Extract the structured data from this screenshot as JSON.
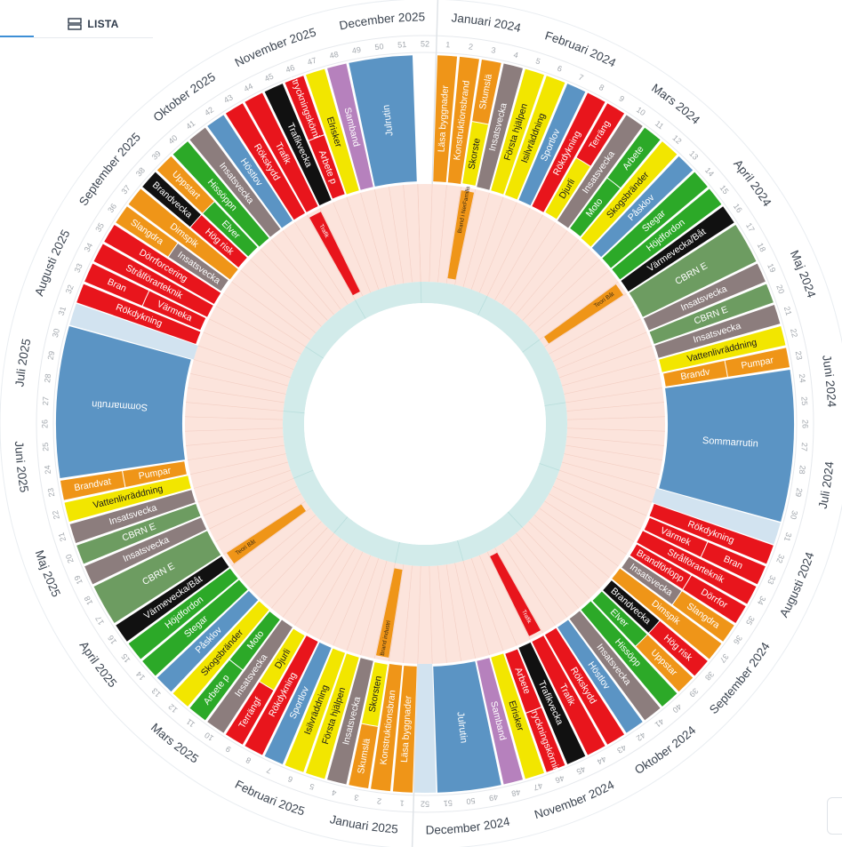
{
  "toolbar": {
    "view_label": "LISTA",
    "corner_glyph": "–"
  },
  "chart_data": {
    "type": "annual-wheel",
    "colors": {
      "blue": "#5b94c4",
      "orange": "#ef9518",
      "gray": "#8c7d7d",
      "yellow": "#f2e600",
      "red": "#e8151c",
      "green": "#2ca928",
      "black": "#111111",
      "darkgreen": "#6d9c61",
      "purple": "#b681bd",
      "lightblue": "#d2e3f0",
      "pinkbg": "#fce4dc",
      "teal": "#d2ebea"
    },
    "months": [
      {
        "label": "Januari 2024",
        "start": 0.5,
        "end": 4.5
      },
      {
        "label": "Februari 2024",
        "start": 4.5,
        "end": 8.5
      },
      {
        "label": "Mars 2024",
        "start": 8.5,
        "end": 13.5
      },
      {
        "label": "April 2024",
        "start": 13.5,
        "end": 17.5
      },
      {
        "label": "Maj 2024",
        "start": 17.5,
        "end": 22.0
      },
      {
        "label": "Juni 2024",
        "start": 22.0,
        "end": 26.5
      },
      {
        "label": "Juli 2024",
        "start": 26.5,
        "end": 30.5
      },
      {
        "label": "Augusti 2024",
        "start": 30.5,
        "end": 35.0
      },
      {
        "label": "September 2024",
        "start": 35.0,
        "end": 39.5
      },
      {
        "label": "Oktober 2024",
        "start": 39.5,
        "end": 43.5
      },
      {
        "label": "November 2024",
        "start": 43.5,
        "end": 48.0
      },
      {
        "label": "December 2024",
        "start": 48.0,
        "end": 52.5
      },
      {
        "label": "Januari 2025",
        "start": 52.5,
        "end": 56.5
      },
      {
        "label": "Februari 2025",
        "start": 56.5,
        "end": 60.5
      },
      {
        "label": "Mars 2025",
        "start": 60.5,
        "end": 65.5
      },
      {
        "label": "April 2025",
        "start": 65.5,
        "end": 69.5
      },
      {
        "label": "Maj 2025",
        "start": 69.5,
        "end": 74.0
      },
      {
        "label": "Juni 2025",
        "start": 74.0,
        "end": 78.5
      },
      {
        "label": "Juli 2025",
        "start": 78.5,
        "end": 82.5
      },
      {
        "label": "Augusti 2025",
        "start": 82.5,
        "end": 87.0
      },
      {
        "label": "September 2025",
        "start": 87.0,
        "end": 91.5
      },
      {
        "label": "Oktober 2025",
        "start": 91.5,
        "end": 95.5
      },
      {
        "label": "November 2025",
        "start": 95.5,
        "end": 100.0
      },
      {
        "label": "December 2025",
        "start": 100.0,
        "end": 104.5
      }
    ],
    "week_numbers": [
      1,
      2,
      3,
      4,
      5,
      6,
      7,
      8,
      9,
      10,
      11,
      12,
      13,
      14,
      15,
      16,
      17,
      18,
      19,
      20,
      21,
      22,
      23,
      24,
      25,
      26,
      27,
      28,
      29,
      30,
      31,
      32,
      33,
      34,
      35,
      36,
      37,
      38,
      39,
      40,
      41,
      42,
      43,
      44,
      45,
      46,
      47,
      48,
      49,
      50,
      51,
      52,
      1,
      2,
      3,
      4,
      5,
      6,
      7,
      8,
      9,
      10,
      11,
      12,
      13,
      14,
      15,
      16,
      17,
      18,
      19,
      20,
      21,
      22,
      23,
      24,
      25,
      26,
      27,
      28,
      29,
      30,
      31,
      32,
      33,
      34,
      35,
      36,
      37,
      38,
      39,
      40,
      41,
      42,
      43,
      44,
      45,
      46,
      47,
      48,
      49,
      50,
      51,
      52
    ],
    "activities": [
      {
        "label": "Läsa byggnader",
        "start": 1,
        "end": 1,
        "color": "orange"
      },
      {
        "label": "Konstruktionsbrand",
        "start": 2,
        "end": 2,
        "color": "orange"
      },
      {
        "label": "Skumslä",
        "start": 3,
        "end": 3,
        "color": "orange"
      },
      {
        "label": "Skorste",
        "start": 3,
        "end": 3,
        "color": "yellow"
      },
      {
        "label": "Insatsvecka",
        "start": 4,
        "end": 4,
        "color": "gray"
      },
      {
        "label": "Första hjälpen",
        "start": 5,
        "end": 5,
        "color": "yellow"
      },
      {
        "label": "Isilvräddning",
        "start": 6,
        "end": 6,
        "color": "yellow"
      },
      {
        "label": "Sportlov",
        "start": 7,
        "end": 7,
        "color": "blue"
      },
      {
        "label": "Rökdykning",
        "start": 8,
        "end": 8,
        "color": "red"
      },
      {
        "label": "Terräng",
        "start": 9,
        "end": 9,
        "color": "red"
      },
      {
        "label": "Djurli",
        "start": 9,
        "end": 9,
        "color": "yellow"
      },
      {
        "label": "Insatsvecka",
        "start": 10,
        "end": 10,
        "color": "gray"
      },
      {
        "label": "Arbete",
        "start": 11,
        "end": 11,
        "color": "green"
      },
      {
        "label": "Moto",
        "start": 11,
        "end": 11,
        "color": "green"
      },
      {
        "label": "Skogsbränder",
        "start": 12,
        "end": 12,
        "color": "yellow"
      },
      {
        "label": "Påsklov",
        "start": 13,
        "end": 13,
        "color": "blue"
      },
      {
        "label": "Stegar",
        "start": 14,
        "end": 14,
        "color": "green"
      },
      {
        "label": "Höjdfordon",
        "start": 15,
        "end": 15,
        "color": "green"
      },
      {
        "label": "Värmevecka/Båt",
        "start": 16,
        "end": 16,
        "color": "black"
      },
      {
        "label": "CBRN E",
        "start": 17,
        "end": 18,
        "color": "darkgreen"
      },
      {
        "label": "Insatsvecka",
        "start": 19,
        "end": 19,
        "color": "gray"
      },
      {
        "label": "CBRN E",
        "start": 20,
        "end": 20,
        "color": "darkgreen"
      },
      {
        "label": "Insatsvecka",
        "start": 21,
        "end": 21,
        "color": "gray"
      },
      {
        "label": "Vattenlivräddning",
        "start": 22,
        "end": 22,
        "color": "yellow"
      },
      {
        "label": "Pumpar",
        "start": 23,
        "end": 23,
        "color": "orange"
      },
      {
        "label": "Brandv",
        "start": 23,
        "end": 23,
        "color": "orange"
      },
      {
        "label": "Sommarrutin",
        "start": 24,
        "end": 30,
        "color": "blue"
      },
      {
        "label": "Rökdykning",
        "start": 32,
        "end": 32,
        "color": "red"
      },
      {
        "label": "Bran",
        "start": 33,
        "end": 33,
        "color": "red"
      },
      {
        "label": "Värmek",
        "start": 33,
        "end": 33,
        "color": "red"
      },
      {
        "label": "Strålförarteknik",
        "start": 34,
        "end": 34,
        "color": "red"
      },
      {
        "label": "Dörrfor",
        "start": 35,
        "end": 35,
        "color": "red"
      },
      {
        "label": "Brandförlopp",
        "start": 35,
        "end": 35,
        "color": "red"
      },
      {
        "label": "Slangdra",
        "start": 36,
        "end": 36,
        "color": "orange"
      },
      {
        "label": "Insatsvecka",
        "start": 36,
        "end": 36,
        "color": "gray"
      },
      {
        "label": "Dimspik",
        "start": 37,
        "end": 37,
        "color": "orange"
      },
      {
        "label": "Hög risk",
        "start": 38,
        "end": 38,
        "color": "red"
      },
      {
        "label": "Brandvecka",
        "start": 38,
        "end": 38,
        "color": "black"
      },
      {
        "label": "Uppstar",
        "start": 39,
        "end": 39,
        "color": "orange"
      },
      {
        "label": "Elver",
        "start": 39,
        "end": 39,
        "color": "green"
      },
      {
        "label": "Hissöpp",
        "start": 40,
        "end": 40,
        "color": "green"
      },
      {
        "label": "Insatsvecka",
        "start": 41,
        "end": 41,
        "color": "gray"
      },
      {
        "label": "Höstlov",
        "start": 42,
        "end": 42,
        "color": "blue"
      },
      {
        "label": "Rökskydd",
        "start": 43,
        "end": 43,
        "color": "red"
      },
      {
        "label": "Trafik",
        "start": 44,
        "end": 44,
        "color": "red"
      },
      {
        "label": "Trafikvecka",
        "start": 45,
        "end": 45,
        "color": "black"
      },
      {
        "label": "Utryckningskörning",
        "start": 46,
        "end": 46,
        "color": "red"
      },
      {
        "label": "Arbete",
        "start": 46,
        "end": 46,
        "color": "red"
      },
      {
        "label": "Elrisker",
        "start": 47,
        "end": 47,
        "color": "yellow"
      },
      {
        "label": "Samband",
        "start": 48,
        "end": 48,
        "color": "purple"
      },
      {
        "label": "Julrutin",
        "start": 49,
        "end": 51,
        "color": "blue"
      },
      {
        "label": "Läsa byggnader",
        "start": 53,
        "end": 53,
        "color": "orange"
      },
      {
        "label": "Konstruktionsbran",
        "start": 54,
        "end": 54,
        "color": "orange"
      },
      {
        "label": "Skumslä",
        "start": 55,
        "end": 55,
        "color": "orange"
      },
      {
        "label": "Skorsten",
        "start": 55,
        "end": 55,
        "color": "yellow"
      },
      {
        "label": "Insatsvecka",
        "start": 56,
        "end": 56,
        "color": "gray"
      },
      {
        "label": "Första hjälpen",
        "start": 57,
        "end": 57,
        "color": "yellow"
      },
      {
        "label": "Isilvräddning",
        "start": 58,
        "end": 58,
        "color": "yellow"
      },
      {
        "label": "Sportlov",
        "start": 59,
        "end": 59,
        "color": "blue"
      },
      {
        "label": "Rökdykning",
        "start": 60,
        "end": 60,
        "color": "red"
      },
      {
        "label": "Terrängf",
        "start": 61,
        "end": 61,
        "color": "red"
      },
      {
        "label": "Djurli",
        "start": 61,
        "end": 61,
        "color": "yellow"
      },
      {
        "label": "Insatsvecka",
        "start": 62,
        "end": 62,
        "color": "gray"
      },
      {
        "label": "Arbete p",
        "start": 63,
        "end": 63,
        "color": "green"
      },
      {
        "label": "Moto",
        "start": 63,
        "end": 63,
        "color": "green"
      },
      {
        "label": "Skogsbränder",
        "start": 64,
        "end": 64,
        "color": "yellow"
      },
      {
        "label": "Påsklov",
        "start": 65,
        "end": 65,
        "color": "blue"
      },
      {
        "label": "Stegar",
        "start": 66,
        "end": 66,
        "color": "green"
      },
      {
        "label": "Höjdfordon",
        "start": 67,
        "end": 67,
        "color": "green"
      },
      {
        "label": "Värmevecka/Båt",
        "start": 68,
        "end": 68,
        "color": "black"
      },
      {
        "label": "CBRN E",
        "start": 69,
        "end": 70,
        "color": "darkgreen"
      },
      {
        "label": "Insatsvecka",
        "start": 71,
        "end": 71,
        "color": "gray"
      },
      {
        "label": "CBRN E",
        "start": 72,
        "end": 72,
        "color": "darkgreen"
      },
      {
        "label": "Insatsvecka",
        "start": 73,
        "end": 73,
        "color": "gray"
      },
      {
        "label": "Vattenlivräddning",
        "start": 74,
        "end": 74,
        "color": "yellow"
      },
      {
        "label": "Brandvat",
        "start": 75,
        "end": 75,
        "color": "orange"
      },
      {
        "label": "Pumpar",
        "start": 75,
        "end": 75,
        "color": "orange"
      },
      {
        "label": "Sommarrutin",
        "start": 76,
        "end": 82,
        "color": "blue"
      },
      {
        "label": "Rökdykning",
        "start": 84,
        "end": 84,
        "color": "red"
      },
      {
        "label": "Bran",
        "start": 85,
        "end": 85,
        "color": "red"
      },
      {
        "label": "Värmeka",
        "start": 85,
        "end": 85,
        "color": "red"
      },
      {
        "label": "Strålförarteknik",
        "start": 86,
        "end": 86,
        "color": "red"
      },
      {
        "label": "Dörrforcering",
        "start": 87,
        "end": 87,
        "color": "red"
      },
      {
        "label": "Slangdra",
        "start": 88,
        "end": 88,
        "color": "orange"
      },
      {
        "label": "Insatsvecka",
        "start": 88,
        "end": 88,
        "color": "gray"
      },
      {
        "label": "Dimspik",
        "start": 89,
        "end": 89,
        "color": "orange"
      },
      {
        "label": "Brandvecka",
        "start": 90,
        "end": 90,
        "color": "black"
      },
      {
        "label": "Hög risk",
        "start": 90,
        "end": 90,
        "color": "red"
      },
      {
        "label": "Uppstart",
        "start": 91,
        "end": 91,
        "color": "orange"
      },
      {
        "label": "Elver",
        "start": 91,
        "end": 91,
        "color": "green"
      },
      {
        "label": "Hissöppn",
        "start": 92,
        "end": 92,
        "color": "green"
      },
      {
        "label": "Insatsvecka",
        "start": 93,
        "end": 93,
        "color": "gray"
      },
      {
        "label": "Höstlov",
        "start": 94,
        "end": 94,
        "color": "blue"
      },
      {
        "label": "Rökskydd",
        "start": 95,
        "end": 95,
        "color": "red"
      },
      {
        "label": "Trafik",
        "start": 96,
        "end": 96,
        "color": "red"
      },
      {
        "label": "Trafikvecka",
        "start": 97,
        "end": 97,
        "color": "black"
      },
      {
        "label": "Utryckningskörnin",
        "start": 98,
        "end": 98,
        "color": "red"
      },
      {
        "label": "Arbete p",
        "start": 98,
        "end": 98,
        "color": "red"
      },
      {
        "label": "Elrisker",
        "start": 99,
        "end": 99,
        "color": "yellow"
      },
      {
        "label": "Samband",
        "start": 100,
        "end": 100,
        "color": "purple"
      },
      {
        "label": "Julrutin",
        "start": 101,
        "end": 103,
        "color": "blue"
      }
    ],
    "inner_markers": [
      {
        "label": "Brand i NerFamilis",
        "start": 3,
        "end": 3,
        "color": "orange"
      },
      {
        "label": "Teori Båt",
        "start": 16,
        "end": 16,
        "color": "orange"
      },
      {
        "label": "Trafik",
        "start": 44,
        "end": 44,
        "color": "red"
      },
      {
        "label": "Brand industri",
        "start": 55,
        "end": 55,
        "color": "orange"
      },
      {
        "label": "Teori Båt",
        "start": 68,
        "end": 68,
        "color": "orange"
      },
      {
        "label": "Trafik",
        "start": 96,
        "end": 96,
        "color": "red"
      }
    ]
  }
}
